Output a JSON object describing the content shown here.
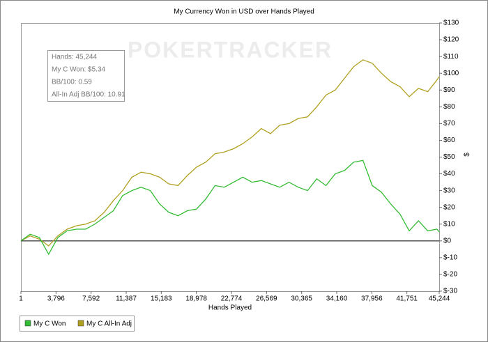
{
  "chart_data": {
    "type": "line",
    "title": "My Currency Won in USD over Hands Played",
    "watermark": "POKERTRACKER",
    "x_label": "Hands Played",
    "y_label": "$",
    "info": [
      "Hands: 45,244",
      "My C Won: $5.34",
      "BB/100: 0.59",
      "All-In Adj BB/100: 10.91"
    ],
    "x": [
      1,
      1000,
      2000,
      3000,
      4000,
      5000,
      6000,
      7000,
      8000,
      9000,
      10000,
      11000,
      12000,
      13000,
      14000,
      15000,
      16000,
      17000,
      18000,
      19000,
      20000,
      21000,
      22000,
      23000,
      24000,
      25000,
      26000,
      27000,
      28000,
      29000,
      30000,
      31000,
      32000,
      33000,
      34000,
      35000,
      36000,
      37000,
      38000,
      39000,
      40000,
      41000,
      42000,
      43000,
      44000,
      45000,
      45244
    ],
    "series": [
      {
        "name": "My C Won",
        "color": "#33bb33",
        "values": [
          0,
          4,
          2,
          -8,
          2,
          6,
          7,
          7,
          10,
          14,
          18,
          27,
          30,
          32,
          30,
          22,
          17,
          15,
          18,
          19,
          25,
          33,
          32,
          35,
          38,
          35,
          36,
          34,
          32,
          35,
          32,
          30,
          37,
          33,
          40,
          42,
          47,
          48,
          33,
          29,
          22,
          16,
          6,
          12,
          6,
          7,
          5.34
        ]
      },
      {
        "name": "My C All-In Adj",
        "color": "#b0a020",
        "values": [
          0,
          3,
          1,
          -3,
          3,
          7,
          9,
          10,
          12,
          17,
          24,
          30,
          38,
          41,
          40,
          38,
          34,
          33,
          39,
          44,
          47,
          52,
          53,
          55,
          58,
          62,
          67,
          64,
          69,
          70,
          73,
          74,
          80,
          87,
          90,
          97,
          104,
          108,
          106,
          100,
          95,
          92,
          86,
          91,
          89,
          96,
          98
        ]
      }
    ],
    "xlim": [
      1,
      45244
    ],
    "xticks": [
      1,
      {
        "value": 3796,
        "label": "3,796"
      },
      {
        "value": 7592,
        "label": "7,592"
      },
      {
        "value": 11387,
        "label": "11,387"
      },
      {
        "value": 15183,
        "label": "15,183"
      },
      {
        "value": 18978,
        "label": "18,978"
      },
      {
        "value": 22774,
        "label": "22,774"
      },
      {
        "value": 26569,
        "label": "26,569"
      },
      {
        "value": 30365,
        "label": "30,365"
      },
      {
        "value": 34160,
        "label": "34,160"
      },
      {
        "value": 37956,
        "label": "37,956"
      },
      {
        "value": 41751,
        "label": "41,751"
      },
      {
        "value": 45244,
        "label": "45,244"
      }
    ],
    "ylim": [
      -30,
      130
    ],
    "yticks": [
      {
        "value": 130,
        "label": "$130"
      },
      {
        "value": 120,
        "label": "$120"
      },
      {
        "value": 110,
        "label": "$110"
      },
      {
        "value": 100,
        "label": "$100"
      },
      {
        "value": 90,
        "label": "$90"
      },
      {
        "value": 80,
        "label": "$80"
      },
      {
        "value": 70,
        "label": "$70"
      },
      {
        "value": 60,
        "label": "$60"
      },
      {
        "value": 50,
        "label": "$50"
      },
      {
        "value": 40,
        "label": "$40"
      },
      {
        "value": 30,
        "label": "$30"
      },
      {
        "value": 20,
        "label": "$20"
      },
      {
        "value": 10,
        "label": "$10"
      },
      {
        "value": 0,
        "label": "$0"
      },
      {
        "value": -10,
        "label": "$-10"
      },
      {
        "value": -20,
        "label": "$-20"
      },
      {
        "value": -30,
        "label": "$-30"
      }
    ],
    "grid": false,
    "zero_line": true,
    "legend": "bottom-left"
  }
}
